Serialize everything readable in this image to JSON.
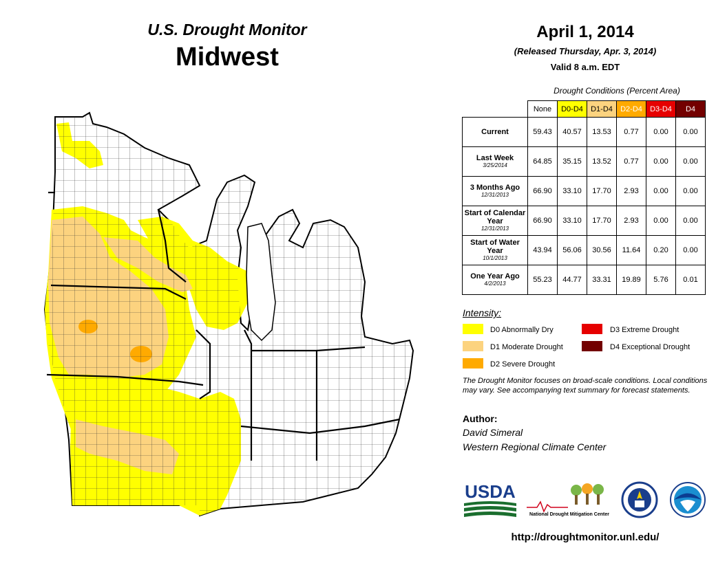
{
  "header": {
    "title": "U.S. Drought Monitor",
    "region": "Midwest"
  },
  "map_info": {
    "date": "April 1, 2014",
    "released": "(Released Thursday, Apr. 3, 2014)",
    "valid": "Valid  8 a.m. EDT"
  },
  "table": {
    "caption": "Drought Conditions (Percent Area)",
    "columns": [
      {
        "label": "None",
        "color": "#ffffff",
        "text_color": "#000000"
      },
      {
        "label": "D0-D4",
        "color": "#ffff00",
        "text_color": "#000000"
      },
      {
        "label": "D1-D4",
        "color": "#fcd37f",
        "text_color": "#000000"
      },
      {
        "label": "D2-D4",
        "color": "#ffaa00",
        "text_color": "#ffffff"
      },
      {
        "label": "D3-D4",
        "color": "#e60000",
        "text_color": "#ffffff"
      },
      {
        "label": "D4",
        "color": "#730000",
        "text_color": "#ffffff"
      }
    ],
    "rows": [
      {
        "label": "Current",
        "sublabel": "",
        "values": [
          "59.43",
          "40.57",
          "13.53",
          "0.77",
          "0.00",
          "0.00"
        ]
      },
      {
        "label": "Last Week",
        "sublabel": "3/25/2014",
        "values": [
          "64.85",
          "35.15",
          "13.52",
          "0.77",
          "0.00",
          "0.00"
        ]
      },
      {
        "label": "3 Months Ago",
        "sublabel": "12/31/2013",
        "values": [
          "66.90",
          "33.10",
          "17.70",
          "2.93",
          "0.00",
          "0.00"
        ]
      },
      {
        "label": "Start of Calendar Year",
        "sublabel": "12/31/2013",
        "values": [
          "66.90",
          "33.10",
          "17.70",
          "2.93",
          "0.00",
          "0.00"
        ]
      },
      {
        "label": "Start of Water Year",
        "sublabel": "10/1/2013",
        "values": [
          "43.94",
          "56.06",
          "30.56",
          "11.64",
          "0.20",
          "0.00"
        ]
      },
      {
        "label": "One Year Ago",
        "sublabel": "4/2/2013",
        "values": [
          "55.23",
          "44.77",
          "33.31",
          "19.89",
          "5.76",
          "0.01"
        ]
      }
    ]
  },
  "legend": {
    "title": "Intensity:",
    "items": [
      {
        "label": "D0 Abnormally Dry",
        "color": "#ffff00"
      },
      {
        "label": "D1 Moderate Drought",
        "color": "#fcd37f"
      },
      {
        "label": "D2 Severe Drought",
        "color": "#ffaa00"
      },
      {
        "label": "D3 Extreme Drought",
        "color": "#e60000"
      },
      {
        "label": "D4 Exceptional Drought",
        "color": "#730000"
      }
    ]
  },
  "note": "The Drought Monitor focuses on broad-scale conditions. Local conditions may vary. See accompanying text summary for forecast statements.",
  "author": {
    "heading": "Author:",
    "name": "David Simeral",
    "org": "Western Regional Climate Center"
  },
  "logos": {
    "usda": "USDA",
    "ndmc": "National Drought Mitigation Center"
  },
  "url": "http://droughtmonitor.unl.edu/"
}
